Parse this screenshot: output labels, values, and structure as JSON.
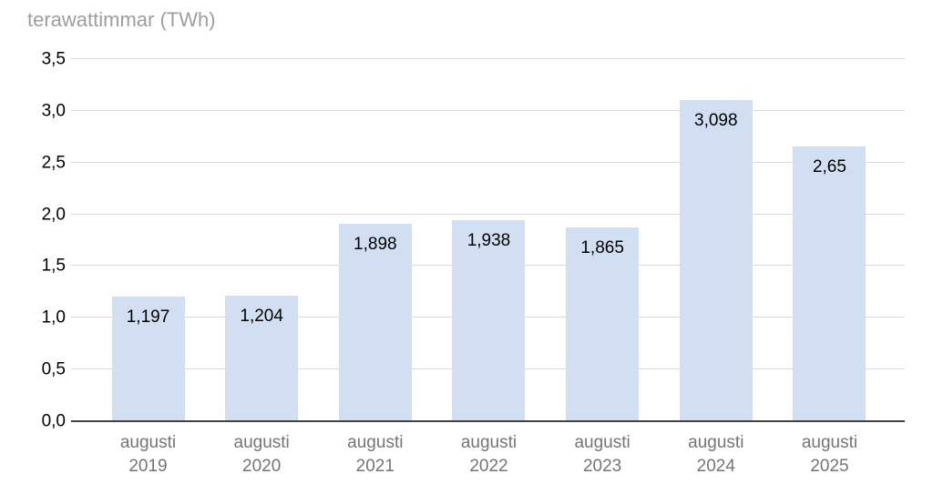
{
  "title": "terawattimmar (TWh)",
  "chart_data": {
    "type": "bar",
    "title": "terawattimmar (TWh)",
    "unit": "TWh",
    "categories": [
      {
        "line1": "augusti",
        "line2": "2019"
      },
      {
        "line1": "augusti",
        "line2": "2020"
      },
      {
        "line1": "augusti",
        "line2": "2021"
      },
      {
        "line1": "augusti",
        "line2": "2022"
      },
      {
        "line1": "augusti",
        "line2": "2023"
      },
      {
        "line1": "augusti",
        "line2": "2024"
      },
      {
        "line1": "augusti",
        "line2": "2025"
      }
    ],
    "values": [
      1.197,
      1.204,
      1.898,
      1.938,
      1.865,
      3.098,
      2.65
    ],
    "value_labels": [
      "1,197",
      "1,204",
      "1,898",
      "1,938",
      "1,865",
      "3,098",
      "2,65"
    ],
    "xlabel": "",
    "ylabel": "",
    "ylim": [
      0,
      3.5
    ],
    "ytick_step": 0.5,
    "yticks": [
      "0,0",
      "0,5",
      "1,0",
      "1,5",
      "2,0",
      "2,5",
      "3,0",
      "3,5"
    ],
    "grid": "horizontal",
    "legend": "none",
    "colors": {
      "background": "#ffffff",
      "bar_fill": "#d2dff2",
      "gridline": "#d9d9d9",
      "axis_line": "#424242",
      "title_text": "#9e9e9e",
      "tick_text": "#000000",
      "category_text": "#757575",
      "value_label_text": "#000000"
    }
  }
}
